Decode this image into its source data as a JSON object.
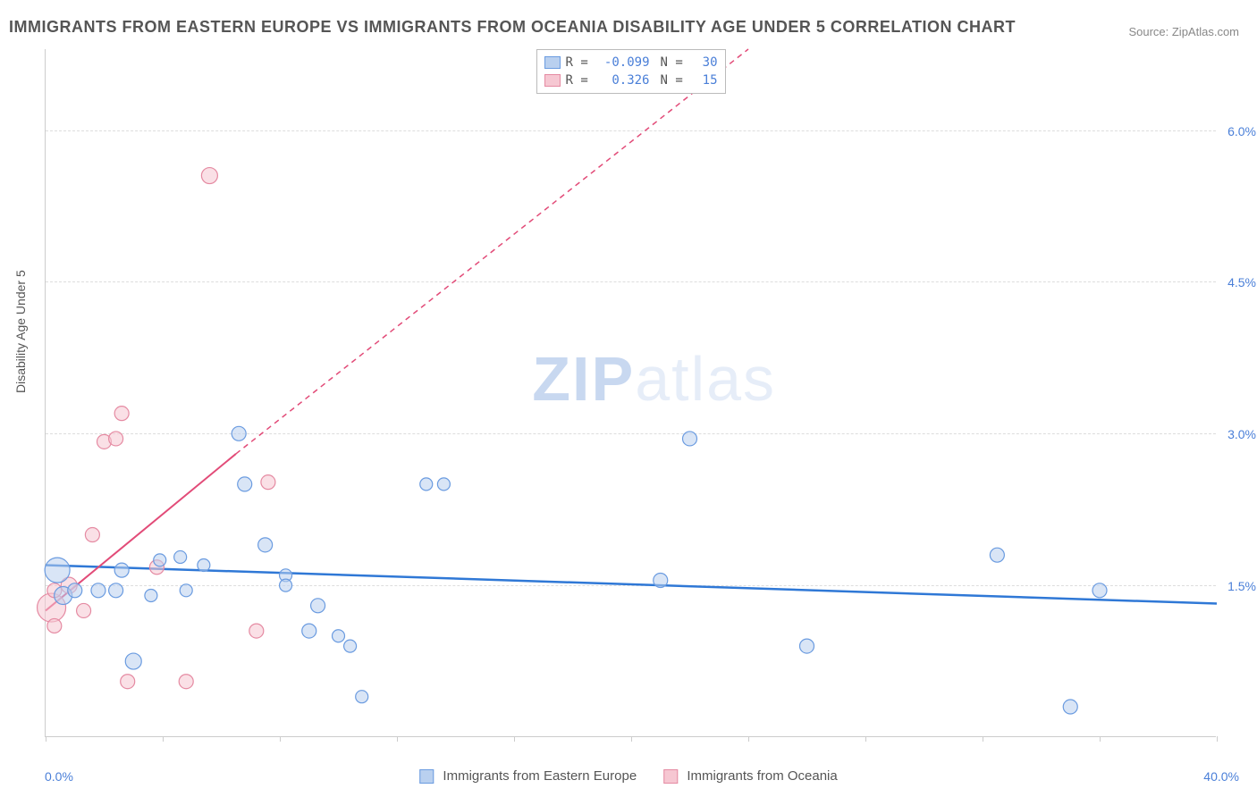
{
  "title": "IMMIGRANTS FROM EASTERN EUROPE VS IMMIGRANTS FROM OCEANIA DISABILITY AGE UNDER 5 CORRELATION CHART",
  "source": "Source: ZipAtlas.com",
  "watermark_a": "ZIP",
  "watermark_b": "atlas",
  "yaxis_title": "Disability Age Under 5",
  "chart": {
    "type": "scatter-with-regression",
    "background_color": "#ffffff",
    "grid_color": "#dddddd",
    "axis_color": "#cccccc",
    "tick_label_color": "#4a7fd8",
    "xlim": [
      0.0,
      40.0
    ],
    "ylim": [
      0.0,
      6.8
    ],
    "x_axis_left_label": "0.0%",
    "x_axis_right_label": "40.0%",
    "x_ticks": [
      0,
      4,
      8,
      12,
      16,
      20,
      24,
      28,
      32,
      36,
      40
    ],
    "y_gridlines": [
      {
        "value": 1.5,
        "label": "1.5%"
      },
      {
        "value": 3.0,
        "label": "3.0%"
      },
      {
        "value": 4.5,
        "label": "4.5%"
      },
      {
        "value": 6.0,
        "label": "6.0%"
      }
    ],
    "series": [
      {
        "name": "Immigrants from Eastern Europe",
        "fill_color": "#b9d0ef",
        "stroke_color": "#6a9be0",
        "line_color": "#2f78d6",
        "line_width": 2.5,
        "line_dash": "none",
        "marker_opacity": 0.55,
        "R": "-0.099",
        "N": "30",
        "regression": {
          "x1": 0.0,
          "y1": 1.7,
          "x2": 40.0,
          "y2": 1.32,
          "dash": false
        },
        "points": [
          {
            "x": 0.4,
            "y": 1.65,
            "r": 14
          },
          {
            "x": 0.6,
            "y": 1.4,
            "r": 10
          },
          {
            "x": 1.0,
            "y": 1.45,
            "r": 8
          },
          {
            "x": 1.8,
            "y": 1.45,
            "r": 8
          },
          {
            "x": 2.4,
            "y": 1.45,
            "r": 8
          },
          {
            "x": 2.6,
            "y": 1.65,
            "r": 8
          },
          {
            "x": 3.0,
            "y": 0.75,
            "r": 9
          },
          {
            "x": 3.6,
            "y": 1.4,
            "r": 7
          },
          {
            "x": 3.9,
            "y": 1.75,
            "r": 7
          },
          {
            "x": 4.6,
            "y": 1.78,
            "r": 7
          },
          {
            "x": 4.8,
            "y": 1.45,
            "r": 7
          },
          {
            "x": 5.4,
            "y": 1.7,
            "r": 7
          },
          {
            "x": 6.6,
            "y": 3.0,
            "r": 8
          },
          {
            "x": 6.8,
            "y": 2.5,
            "r": 8
          },
          {
            "x": 7.5,
            "y": 1.9,
            "r": 8
          },
          {
            "x": 8.2,
            "y": 1.6,
            "r": 7
          },
          {
            "x": 8.2,
            "y": 1.5,
            "r": 7
          },
          {
            "x": 9.0,
            "y": 1.05,
            "r": 8
          },
          {
            "x": 9.3,
            "y": 1.3,
            "r": 8
          },
          {
            "x": 10.0,
            "y": 1.0,
            "r": 7
          },
          {
            "x": 10.4,
            "y": 0.9,
            "r": 7
          },
          {
            "x": 10.8,
            "y": 0.4,
            "r": 7
          },
          {
            "x": 13.0,
            "y": 2.5,
            "r": 7
          },
          {
            "x": 13.6,
            "y": 2.5,
            "r": 7
          },
          {
            "x": 21.0,
            "y": 1.55,
            "r": 8
          },
          {
            "x": 22.0,
            "y": 2.95,
            "r": 8
          },
          {
            "x": 26.0,
            "y": 0.9,
            "r": 8
          },
          {
            "x": 32.5,
            "y": 1.8,
            "r": 8
          },
          {
            "x": 35.0,
            "y": 0.3,
            "r": 8
          },
          {
            "x": 36.0,
            "y": 1.45,
            "r": 8
          }
        ]
      },
      {
        "name": "Immigrants from Oceania",
        "fill_color": "#f6c7d2",
        "stroke_color": "#e58aa2",
        "line_color": "#e24b78",
        "line_width": 2,
        "line_dash": "6,5",
        "marker_opacity": 0.55,
        "R": "0.326",
        "N": "15",
        "regression_solid": {
          "x1": 0.0,
          "y1": 1.25,
          "x2": 6.5,
          "y2": 2.8
        },
        "regression_dashed": {
          "x1": 6.5,
          "y1": 2.8,
          "x2": 24.0,
          "y2": 6.8
        },
        "points": [
          {
            "x": 0.2,
            "y": 1.28,
            "r": 16
          },
          {
            "x": 0.3,
            "y": 1.45,
            "r": 8
          },
          {
            "x": 0.3,
            "y": 1.1,
            "r": 8
          },
          {
            "x": 0.8,
            "y": 1.5,
            "r": 9
          },
          {
            "x": 1.3,
            "y": 1.25,
            "r": 8
          },
          {
            "x": 1.6,
            "y": 2.0,
            "r": 8
          },
          {
            "x": 2.0,
            "y": 2.92,
            "r": 8
          },
          {
            "x": 2.6,
            "y": 3.2,
            "r": 8
          },
          {
            "x": 2.4,
            "y": 2.95,
            "r": 8
          },
          {
            "x": 2.8,
            "y": 0.55,
            "r": 8
          },
          {
            "x": 3.8,
            "y": 1.68,
            "r": 8
          },
          {
            "x": 4.8,
            "y": 0.55,
            "r": 8
          },
          {
            "x": 5.6,
            "y": 5.55,
            "r": 9
          },
          {
            "x": 7.2,
            "y": 1.05,
            "r": 8
          },
          {
            "x": 7.6,
            "y": 2.52,
            "r": 8
          }
        ]
      }
    ]
  },
  "bottom_legend": [
    {
      "label": "Immigrants from Eastern Europe",
      "fill": "#b9d0ef",
      "stroke": "#6a9be0"
    },
    {
      "label": "Immigrants from Oceania",
      "fill": "#f6c7d2",
      "stroke": "#e58aa2"
    }
  ]
}
